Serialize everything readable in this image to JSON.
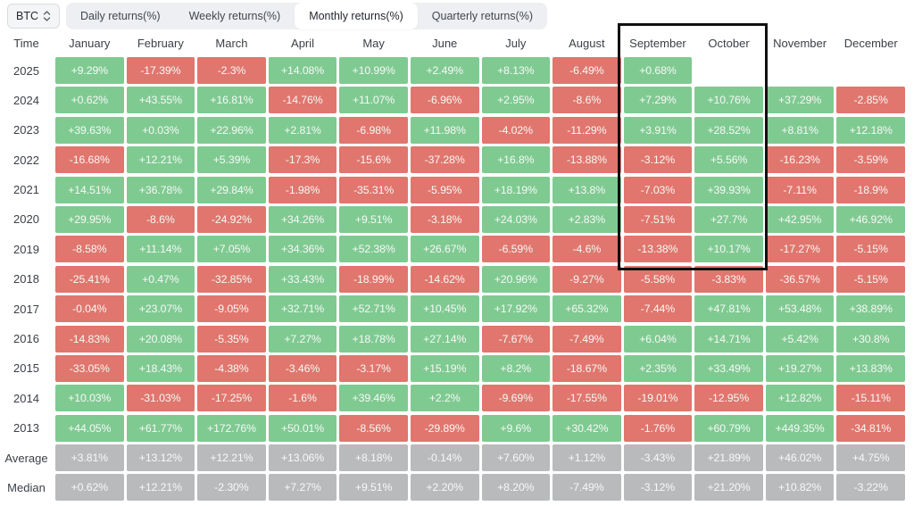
{
  "colors": {
    "positive": "#7fca91",
    "negative": "#e0766d",
    "summary": "#b9babc",
    "toolbar_bg": "#edeff2",
    "active_tab_bg": "#ffffff",
    "header_text": "#3c4047",
    "highlight_border": "#101010"
  },
  "toolbar": {
    "asset_selector": {
      "label": "BTC"
    },
    "tabs": [
      {
        "label": "Daily returns(%)",
        "active": false
      },
      {
        "label": "Weekly returns(%)",
        "active": false
      },
      {
        "label": "Monthly returns(%)",
        "active": true
      },
      {
        "label": "Quarterly returns(%)",
        "active": false
      }
    ]
  },
  "highlight": {
    "columns": [
      "September",
      "October"
    ]
  },
  "table": {
    "time_header": "Time",
    "months": [
      "January",
      "February",
      "March",
      "April",
      "May",
      "June",
      "July",
      "August",
      "September",
      "October",
      "November",
      "December"
    ],
    "rows": [
      {
        "label": "2025",
        "type": "year",
        "cells": [
          {
            "v": "+9.29%",
            "c": "pos"
          },
          {
            "v": "-17.39%",
            "c": "neg"
          },
          {
            "v": "-2.3%",
            "c": "neg"
          },
          {
            "v": "+14.08%",
            "c": "pos"
          },
          {
            "v": "+10.99%",
            "c": "pos"
          },
          {
            "v": "+2.49%",
            "c": "pos"
          },
          {
            "v": "+8.13%",
            "c": "pos"
          },
          {
            "v": "-6.49%",
            "c": "neg"
          },
          {
            "v": "+0.68%",
            "c": "pos"
          },
          null,
          null,
          null
        ]
      },
      {
        "label": "2024",
        "type": "year",
        "cells": [
          {
            "v": "+0.62%",
            "c": "pos"
          },
          {
            "v": "+43.55%",
            "c": "pos"
          },
          {
            "v": "+16.81%",
            "c": "pos"
          },
          {
            "v": "-14.76%",
            "c": "neg"
          },
          {
            "v": "+11.07%",
            "c": "pos"
          },
          {
            "v": "-6.96%",
            "c": "neg"
          },
          {
            "v": "+2.95%",
            "c": "pos"
          },
          {
            "v": "-8.6%",
            "c": "neg"
          },
          {
            "v": "+7.29%",
            "c": "pos"
          },
          {
            "v": "+10.76%",
            "c": "pos"
          },
          {
            "v": "+37.29%",
            "c": "pos"
          },
          {
            "v": "-2.85%",
            "c": "neg"
          }
        ]
      },
      {
        "label": "2023",
        "type": "year",
        "cells": [
          {
            "v": "+39.63%",
            "c": "pos"
          },
          {
            "v": "+0.03%",
            "c": "pos"
          },
          {
            "v": "+22.96%",
            "c": "pos"
          },
          {
            "v": "+2.81%",
            "c": "pos"
          },
          {
            "v": "-6.98%",
            "c": "neg"
          },
          {
            "v": "+11.98%",
            "c": "pos"
          },
          {
            "v": "-4.02%",
            "c": "neg"
          },
          {
            "v": "-11.29%",
            "c": "neg"
          },
          {
            "v": "+3.91%",
            "c": "pos"
          },
          {
            "v": "+28.52%",
            "c": "pos"
          },
          {
            "v": "+8.81%",
            "c": "pos"
          },
          {
            "v": "+12.18%",
            "c": "pos"
          }
        ]
      },
      {
        "label": "2022",
        "type": "year",
        "cells": [
          {
            "v": "-16.68%",
            "c": "neg"
          },
          {
            "v": "+12.21%",
            "c": "pos"
          },
          {
            "v": "+5.39%",
            "c": "pos"
          },
          {
            "v": "-17.3%",
            "c": "neg"
          },
          {
            "v": "-15.6%",
            "c": "neg"
          },
          {
            "v": "-37.28%",
            "c": "neg"
          },
          {
            "v": "+16.8%",
            "c": "pos"
          },
          {
            "v": "-13.88%",
            "c": "neg"
          },
          {
            "v": "-3.12%",
            "c": "neg"
          },
          {
            "v": "+5.56%",
            "c": "pos"
          },
          {
            "v": "-16.23%",
            "c": "neg"
          },
          {
            "v": "-3.59%",
            "c": "neg"
          }
        ]
      },
      {
        "label": "2021",
        "type": "year",
        "cells": [
          {
            "v": "+14.51%",
            "c": "pos"
          },
          {
            "v": "+36.78%",
            "c": "pos"
          },
          {
            "v": "+29.84%",
            "c": "pos"
          },
          {
            "v": "-1.98%",
            "c": "neg"
          },
          {
            "v": "-35.31%",
            "c": "neg"
          },
          {
            "v": "-5.95%",
            "c": "neg"
          },
          {
            "v": "+18.19%",
            "c": "pos"
          },
          {
            "v": "+13.8%",
            "c": "pos"
          },
          {
            "v": "-7.03%",
            "c": "neg"
          },
          {
            "v": "+39.93%",
            "c": "pos"
          },
          {
            "v": "-7.11%",
            "c": "neg"
          },
          {
            "v": "-18.9%",
            "c": "neg"
          }
        ]
      },
      {
        "label": "2020",
        "type": "year",
        "cells": [
          {
            "v": "+29.95%",
            "c": "pos"
          },
          {
            "v": "-8.6%",
            "c": "neg"
          },
          {
            "v": "-24.92%",
            "c": "neg"
          },
          {
            "v": "+34.26%",
            "c": "pos"
          },
          {
            "v": "+9.51%",
            "c": "pos"
          },
          {
            "v": "-3.18%",
            "c": "neg"
          },
          {
            "v": "+24.03%",
            "c": "pos"
          },
          {
            "v": "+2.83%",
            "c": "pos"
          },
          {
            "v": "-7.51%",
            "c": "neg"
          },
          {
            "v": "+27.7%",
            "c": "pos"
          },
          {
            "v": "+42.95%",
            "c": "pos"
          },
          {
            "v": "+46.92%",
            "c": "pos"
          }
        ]
      },
      {
        "label": "2019",
        "type": "year",
        "cells": [
          {
            "v": "-8.58%",
            "c": "neg"
          },
          {
            "v": "+11.14%",
            "c": "pos"
          },
          {
            "v": "+7.05%",
            "c": "pos"
          },
          {
            "v": "+34.36%",
            "c": "pos"
          },
          {
            "v": "+52.38%",
            "c": "pos"
          },
          {
            "v": "+26.67%",
            "c": "pos"
          },
          {
            "v": "-6.59%",
            "c": "neg"
          },
          {
            "v": "-4.6%",
            "c": "neg"
          },
          {
            "v": "-13.38%",
            "c": "neg"
          },
          {
            "v": "+10.17%",
            "c": "pos"
          },
          {
            "v": "-17.27%",
            "c": "neg"
          },
          {
            "v": "-5.15%",
            "c": "neg"
          }
        ]
      },
      {
        "label": "2018",
        "type": "year",
        "cells": [
          {
            "v": "-25.41%",
            "c": "neg"
          },
          {
            "v": "+0.47%",
            "c": "pos"
          },
          {
            "v": "-32.85%",
            "c": "neg"
          },
          {
            "v": "+33.43%",
            "c": "pos"
          },
          {
            "v": "-18.99%",
            "c": "neg"
          },
          {
            "v": "-14.62%",
            "c": "neg"
          },
          {
            "v": "+20.96%",
            "c": "pos"
          },
          {
            "v": "-9.27%",
            "c": "neg"
          },
          {
            "v": "-5.58%",
            "c": "neg"
          },
          {
            "v": "-3.83%",
            "c": "neg"
          },
          {
            "v": "-36.57%",
            "c": "neg"
          },
          {
            "v": "-5.15%",
            "c": "neg"
          }
        ]
      },
      {
        "label": "2017",
        "type": "year",
        "cells": [
          {
            "v": "-0.04%",
            "c": "neg"
          },
          {
            "v": "+23.07%",
            "c": "pos"
          },
          {
            "v": "-9.05%",
            "c": "neg"
          },
          {
            "v": "+32.71%",
            "c": "pos"
          },
          {
            "v": "+52.71%",
            "c": "pos"
          },
          {
            "v": "+10.45%",
            "c": "pos"
          },
          {
            "v": "+17.92%",
            "c": "pos"
          },
          {
            "v": "+65.32%",
            "c": "pos"
          },
          {
            "v": "-7.44%",
            "c": "neg"
          },
          {
            "v": "+47.81%",
            "c": "pos"
          },
          {
            "v": "+53.48%",
            "c": "pos"
          },
          {
            "v": "+38.89%",
            "c": "pos"
          }
        ]
      },
      {
        "label": "2016",
        "type": "year",
        "cells": [
          {
            "v": "-14.83%",
            "c": "neg"
          },
          {
            "v": "+20.08%",
            "c": "pos"
          },
          {
            "v": "-5.35%",
            "c": "neg"
          },
          {
            "v": "+7.27%",
            "c": "pos"
          },
          {
            "v": "+18.78%",
            "c": "pos"
          },
          {
            "v": "+27.14%",
            "c": "pos"
          },
          {
            "v": "-7.67%",
            "c": "neg"
          },
          {
            "v": "-7.49%",
            "c": "neg"
          },
          {
            "v": "+6.04%",
            "c": "pos"
          },
          {
            "v": "+14.71%",
            "c": "pos"
          },
          {
            "v": "+5.42%",
            "c": "pos"
          },
          {
            "v": "+30.8%",
            "c": "pos"
          }
        ]
      },
      {
        "label": "2015",
        "type": "year",
        "cells": [
          {
            "v": "-33.05%",
            "c": "neg"
          },
          {
            "v": "+18.43%",
            "c": "pos"
          },
          {
            "v": "-4.38%",
            "c": "neg"
          },
          {
            "v": "-3.46%",
            "c": "neg"
          },
          {
            "v": "-3.17%",
            "c": "neg"
          },
          {
            "v": "+15.19%",
            "c": "pos"
          },
          {
            "v": "+8.2%",
            "c": "pos"
          },
          {
            "v": "-18.67%",
            "c": "neg"
          },
          {
            "v": "+2.35%",
            "c": "pos"
          },
          {
            "v": "+33.49%",
            "c": "pos"
          },
          {
            "v": "+19.27%",
            "c": "pos"
          },
          {
            "v": "+13.83%",
            "c": "pos"
          }
        ]
      },
      {
        "label": "2014",
        "type": "year",
        "cells": [
          {
            "v": "+10.03%",
            "c": "pos"
          },
          {
            "v": "-31.03%",
            "c": "neg"
          },
          {
            "v": "-17.25%",
            "c": "neg"
          },
          {
            "v": "-1.6%",
            "c": "neg"
          },
          {
            "v": "+39.46%",
            "c": "pos"
          },
          {
            "v": "+2.2%",
            "c": "pos"
          },
          {
            "v": "-9.69%",
            "c": "neg"
          },
          {
            "v": "-17.55%",
            "c": "neg"
          },
          {
            "v": "-19.01%",
            "c": "neg"
          },
          {
            "v": "-12.95%",
            "c": "neg"
          },
          {
            "v": "+12.82%",
            "c": "pos"
          },
          {
            "v": "-15.11%",
            "c": "neg"
          }
        ]
      },
      {
        "label": "2013",
        "type": "year",
        "cells": [
          {
            "v": "+44.05%",
            "c": "pos"
          },
          {
            "v": "+61.77%",
            "c": "pos"
          },
          {
            "v": "+172.76%",
            "c": "pos"
          },
          {
            "v": "+50.01%",
            "c": "pos"
          },
          {
            "v": "-8.56%",
            "c": "neg"
          },
          {
            "v": "-29.89%",
            "c": "neg"
          },
          {
            "v": "+9.6%",
            "c": "pos"
          },
          {
            "v": "+30.42%",
            "c": "pos"
          },
          {
            "v": "-1.76%",
            "c": "neg"
          },
          {
            "v": "+60.79%",
            "c": "pos"
          },
          {
            "v": "+449.35%",
            "c": "pos"
          },
          {
            "v": "-34.81%",
            "c": "neg"
          }
        ]
      },
      {
        "label": "Average",
        "type": "summary",
        "cells": [
          {
            "v": "+3.81%",
            "c": "neu"
          },
          {
            "v": "+13.12%",
            "c": "neu"
          },
          {
            "v": "+12.21%",
            "c": "neu"
          },
          {
            "v": "+13.06%",
            "c": "neu"
          },
          {
            "v": "+8.18%",
            "c": "neu"
          },
          {
            "v": "-0.14%",
            "c": "neu"
          },
          {
            "v": "+7.60%",
            "c": "neu"
          },
          {
            "v": "+1.12%",
            "c": "neu"
          },
          {
            "v": "-3.43%",
            "c": "neu"
          },
          {
            "v": "+21.89%",
            "c": "neu"
          },
          {
            "v": "+46.02%",
            "c": "neu"
          },
          {
            "v": "+4.75%",
            "c": "neu"
          }
        ]
      },
      {
        "label": "Median",
        "type": "summary",
        "cells": [
          {
            "v": "+0.62%",
            "c": "neu"
          },
          {
            "v": "+12.21%",
            "c": "neu"
          },
          {
            "v": "-2.30%",
            "c": "neu"
          },
          {
            "v": "+7.27%",
            "c": "neu"
          },
          {
            "v": "+9.51%",
            "c": "neu"
          },
          {
            "v": "+2.20%",
            "c": "neu"
          },
          {
            "v": "+8.20%",
            "c": "neu"
          },
          {
            "v": "-7.49%",
            "c": "neu"
          },
          {
            "v": "-3.12%",
            "c": "neu"
          },
          {
            "v": "+21.20%",
            "c": "neu"
          },
          {
            "v": "+10.82%",
            "c": "neu"
          },
          {
            "v": "-3.22%",
            "c": "neu"
          }
        ]
      }
    ]
  }
}
